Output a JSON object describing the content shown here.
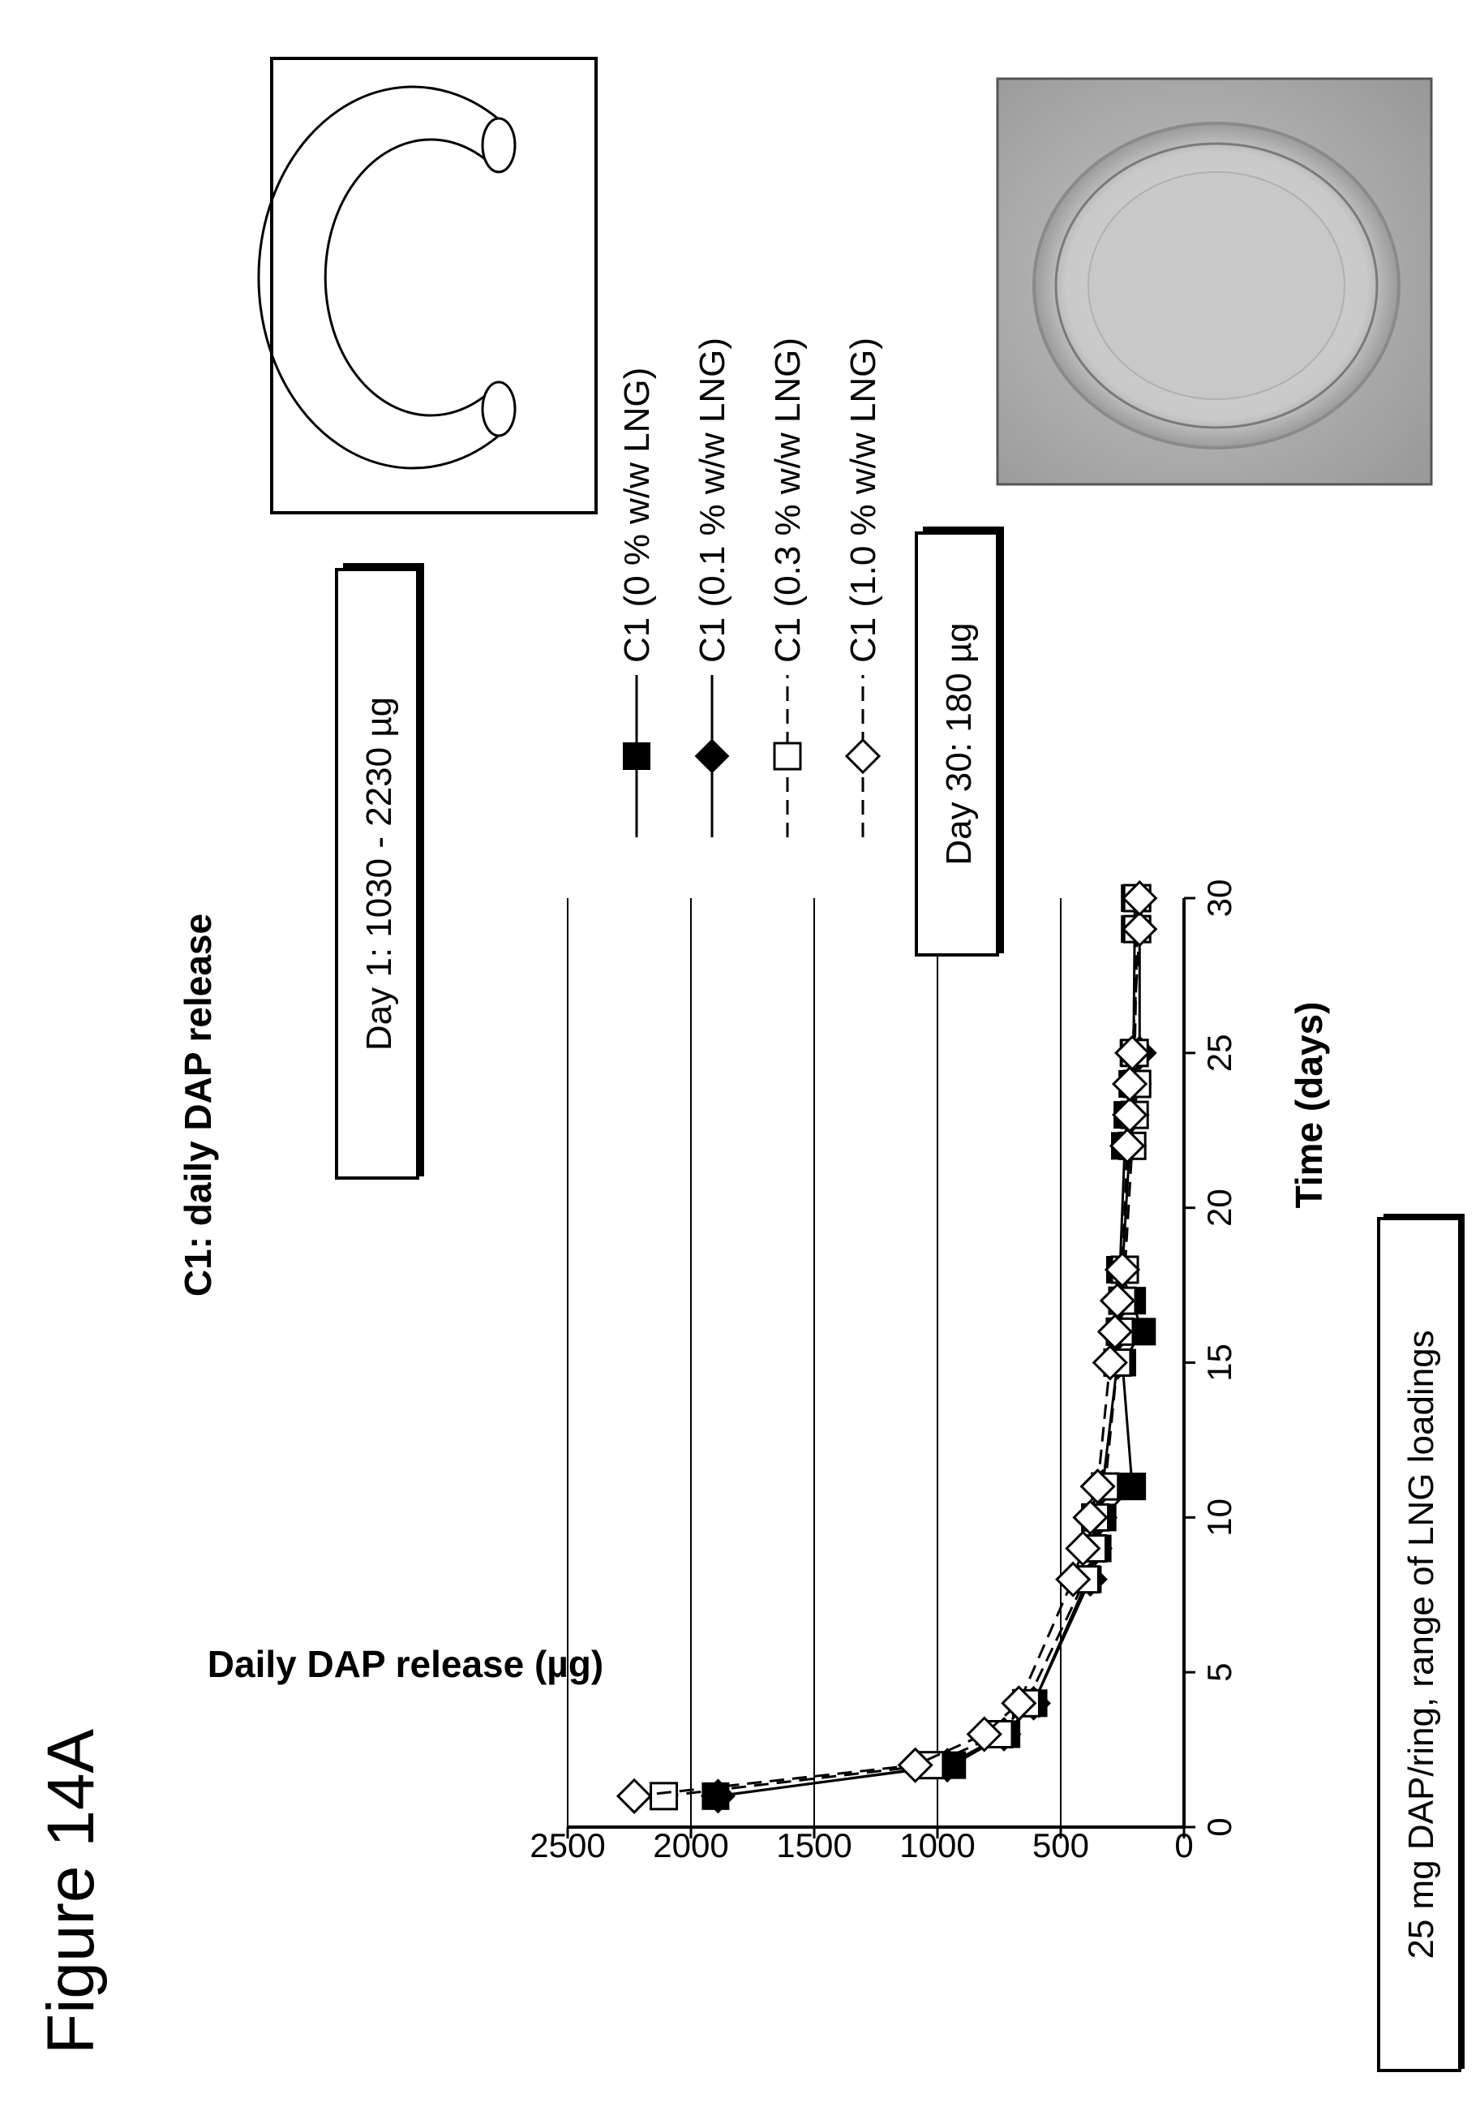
{
  "figure_label": "Figure 14A",
  "caption": "25 mg DAP/ring, range of LNG loadings",
  "annotations": {
    "day1": "Day 1: 1030 - 2230 µg",
    "day30": "Day 30: 180 µg"
  },
  "icons": {
    "ring_diagram": "c-ring-icon",
    "ring_photo": "ring-photo-image"
  },
  "chart_data": {
    "type": "line",
    "title": "C1: daily DAP release",
    "xlabel": "Time (days)",
    "ylabel": "Daily DAP release (µg)",
    "xlim": [
      0,
      30
    ],
    "ylim": [
      0,
      2500
    ],
    "xticks": [
      0,
      5,
      10,
      15,
      20,
      25,
      30
    ],
    "yticks": [
      0,
      500,
      1000,
      1500,
      2000,
      2500
    ],
    "grid": "horizontal",
    "legend_position": "right",
    "series": [
      {
        "name": "C1 (0 % w/w LNG)",
        "marker": "square-filled",
        "line": "solid",
        "x": [
          1,
          2,
          3,
          4,
          8,
          9,
          10,
          11,
          15,
          16,
          17,
          18,
          22,
          23,
          24,
          25,
          29,
          30
        ],
        "y": [
          1900,
          940,
          720,
          610,
          390,
          350,
          330,
          210,
          250,
          170,
          210,
          260,
          240,
          230,
          210,
          205,
          200,
          200
        ]
      },
      {
        "name": "C1 (0.1 % w/w LNG)",
        "marker": "diamond-filled",
        "line": "solid",
        "x": [
          1,
          2,
          3,
          4,
          8,
          9,
          10,
          11,
          15,
          16,
          17,
          18,
          22,
          23,
          24,
          25,
          29,
          30
        ],
        "y": [
          1890,
          960,
          730,
          610,
          380,
          360,
          340,
          330,
          270,
          260,
          255,
          250,
          220,
          210,
          200,
          180,
          180,
          180
        ]
      },
      {
        "name": "C1 (0.3 % w/w LNG)",
        "marker": "square-open",
        "line": "dashed",
        "x": [
          1,
          2,
          3,
          4,
          8,
          9,
          10,
          11,
          15,
          16,
          17,
          18,
          22,
          23,
          24,
          25,
          29,
          30
        ],
        "y": [
          2110,
          1030,
          750,
          640,
          400,
          370,
          360,
          320,
          270,
          260,
          250,
          240,
          210,
          200,
          190,
          200,
          190,
          190
        ]
      },
      {
        "name": "C1 (1.0 % w/w LNG)",
        "marker": "diamond-open",
        "line": "dashed",
        "x": [
          1,
          2,
          3,
          4,
          8,
          9,
          10,
          11,
          15,
          16,
          17,
          18,
          22,
          23,
          24,
          25,
          29,
          30
        ],
        "y": [
          2230,
          1090,
          810,
          670,
          450,
          410,
          380,
          350,
          300,
          280,
          270,
          250,
          230,
          220,
          220,
          210,
          180,
          180
        ]
      }
    ]
  }
}
